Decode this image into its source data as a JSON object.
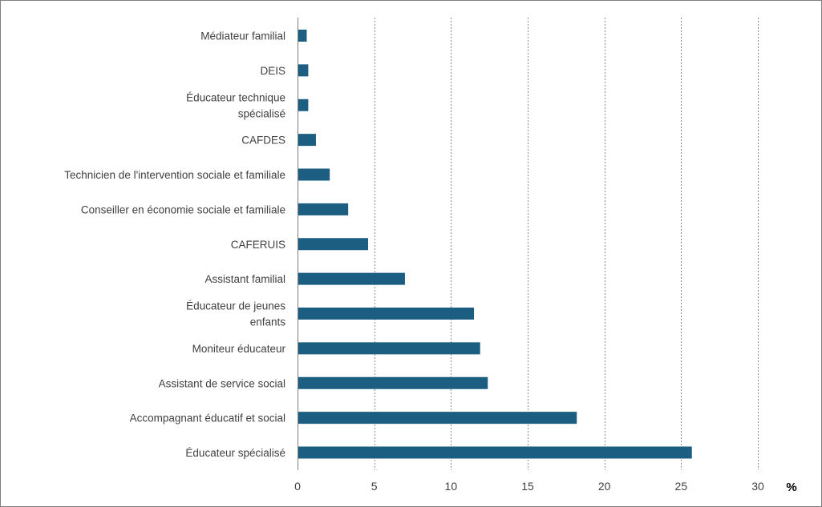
{
  "chart_data": {
    "type": "bar",
    "orientation": "horizontal",
    "categories": [
      [
        "Médiateur familial"
      ],
      [
        "DEIS"
      ],
      [
        "Éducateur technique",
        "spécialisé"
      ],
      [
        "CAFDES"
      ],
      [
        "Technicien de l'intervention sociale et familiale"
      ],
      [
        "Conseiller en économie sociale et familiale"
      ],
      [
        "CAFERUIS"
      ],
      [
        "Assistant familial"
      ],
      [
        "Éducateur de jeunes",
        "enfants"
      ],
      [
        "Moniteur éducateur"
      ],
      [
        "Assistant de service social"
      ],
      [
        "Accompagnant éducatif et social"
      ],
      [
        "Éducateur spécialisé"
      ]
    ],
    "values": [
      0.6,
      0.7,
      0.7,
      1.2,
      2.1,
      3.3,
      4.6,
      7.0,
      11.5,
      11.9,
      12.4,
      18.2,
      25.7
    ],
    "xlim": [
      0,
      30
    ],
    "xticks": [
      "0",
      "5",
      "10",
      "15",
      "20",
      "25",
      "30"
    ],
    "xtick_values": [
      0,
      5,
      10,
      15,
      20,
      25,
      30
    ],
    "unit_label": "%",
    "grid": "vertical-dotted",
    "bar_color": "#1b5e82",
    "legend": "none"
  }
}
